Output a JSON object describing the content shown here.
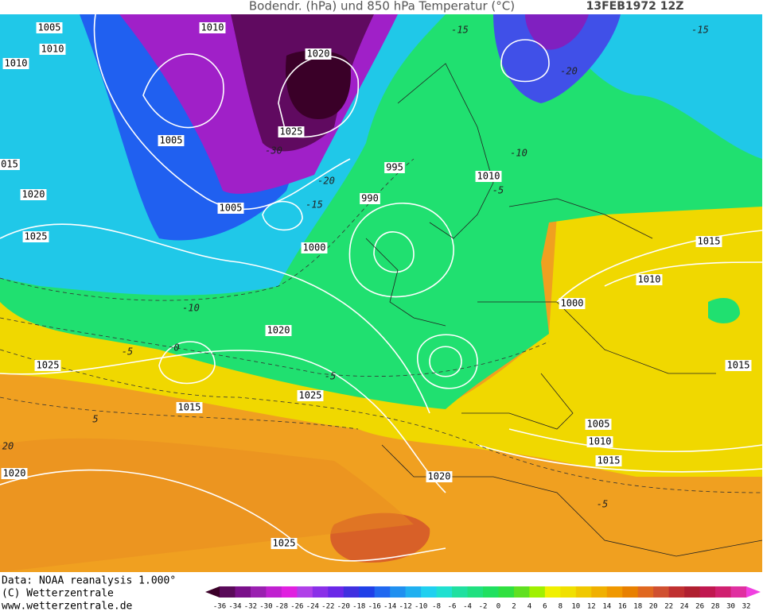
{
  "header": {
    "title": "Bodendr. (hPa) und 850 hPa Temperatur (°C)",
    "date": "13FEB1972 12Z"
  },
  "footer": {
    "source": "Data: NOAA reanalysis 1.000°",
    "copyright": "(C) Wetterzentrale",
    "url": "www.wetterzentrale.de"
  },
  "isobar_labels": [
    "1005",
    "1010",
    "1010",
    "1010",
    "1005",
    "1020",
    "1025",
    "1005",
    "995",
    "990",
    "1010",
    "1000",
    "1020",
    "1025",
    "1025",
    "1015",
    "1025",
    "1020",
    "1025",
    "1015",
    "1010",
    "1000",
    "1015",
    "1005",
    "1010",
    "1015",
    "1020",
    "1020",
    "015"
  ],
  "temperature_labels": [
    "-15",
    "-20",
    "-10",
    "-5",
    "-30",
    "-20",
    "-15",
    "-10",
    "-5",
    "0",
    "-5",
    "5",
    "20",
    "-5",
    "-15"
  ],
  "colorbar": {
    "labels": [
      -36,
      -34,
      -32,
      -30,
      -28,
      -26,
      -24,
      -22,
      -20,
      -18,
      -16,
      -14,
      -12,
      -10,
      -8,
      -6,
      -4,
      -2,
      0,
      2,
      4,
      6,
      8,
      10,
      12,
      14,
      16,
      18,
      20,
      22,
      24,
      26,
      28,
      30,
      32
    ],
    "colors": [
      "#3a0028",
      "#5a0a5a",
      "#7a108a",
      "#9a20b0",
      "#c020d0",
      "#e020e0",
      "#b040e8",
      "#8a30e8",
      "#6a28e8",
      "#4030e0",
      "#2040e8",
      "#2068f0",
      "#2090f0",
      "#20b0f0",
      "#20d0f0",
      "#20e0d0",
      "#20e0a0",
      "#20e080",
      "#20e060",
      "#30e040",
      "#60e020",
      "#a0f000",
      "#f0f000",
      "#f0e000",
      "#f0c800",
      "#f0b000",
      "#f09800",
      "#e88000",
      "#e06820",
      "#d05030",
      "#c03030",
      "#b02030",
      "#c01850",
      "#d02070",
      "#e030a0",
      "#f040e0"
    ]
  }
}
